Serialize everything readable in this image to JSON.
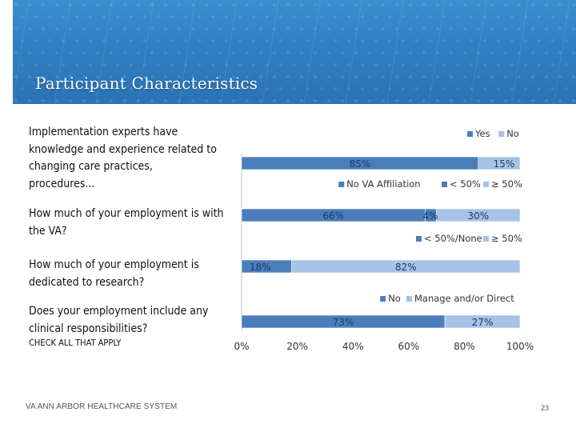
{
  "slide": {
    "title": "Participant Characteristics",
    "footer": "VA ANN ARBOR HEALTHCARE SYSTEM",
    "page_number": "23"
  },
  "questions": [
    "Implementation experts have knowledge and experience related to changing care practices, procedures...",
    "How much of your employment is with the VA?",
    "How much of your employment is dedicated to research?",
    "Does your employment include any clinical responsibilities?"
  ],
  "check_all_note": "CHECK ALL THAT APPLY",
  "colors": {
    "dark_blue": "#4a7ebb",
    "light_blue": "#a6c3e6",
    "banner": "#2f7fc2"
  },
  "chart_data": {
    "type": "bar",
    "orientation": "horizontal",
    "stacked": true,
    "xlim": [
      0,
      100
    ],
    "x_ticks": [
      "0%",
      "20%",
      "40%",
      "60%",
      "80%",
      "100%"
    ],
    "bars": [
      {
        "legend": [
          "Yes",
          "No"
        ],
        "segments": [
          {
            "name": "Yes",
            "value": 85,
            "label": "85%",
            "color": "#4a7ebb"
          },
          {
            "name": "No",
            "value": 15,
            "label": "15%",
            "color": "#a6c3e6"
          }
        ]
      },
      {
        "legend": [
          "No VA Affiliation",
          "< 50%",
          "≥ 50%"
        ],
        "segments": [
          {
            "name": "No VA Affiliation",
            "value": 66,
            "label": "66%",
            "color": "#4a7ebb"
          },
          {
            "name": "< 50%",
            "value": 4,
            "label": "4%",
            "color": "#4a7ebb"
          },
          {
            "name": "≥ 50%",
            "value": 30,
            "label": "30%",
            "color": "#a6c3e6"
          }
        ]
      },
      {
        "legend": [
          "< 50%/None",
          "≥ 50%"
        ],
        "segments": [
          {
            "name": "< 50%/None",
            "value": 18,
            "label": "18%",
            "color": "#4a7ebb"
          },
          {
            "name": "≥ 50%",
            "value": 82,
            "label": "82%",
            "color": "#a6c3e6"
          }
        ]
      },
      {
        "legend": [
          "No",
          "Manage and/or Direct"
        ],
        "segments": [
          {
            "name": "No",
            "value": 73,
            "label": "73%",
            "color": "#4a7ebb"
          },
          {
            "name": "Manage and/or Direct",
            "value": 27,
            "label": "27%",
            "color": "#a6c3e6"
          }
        ]
      }
    ]
  }
}
